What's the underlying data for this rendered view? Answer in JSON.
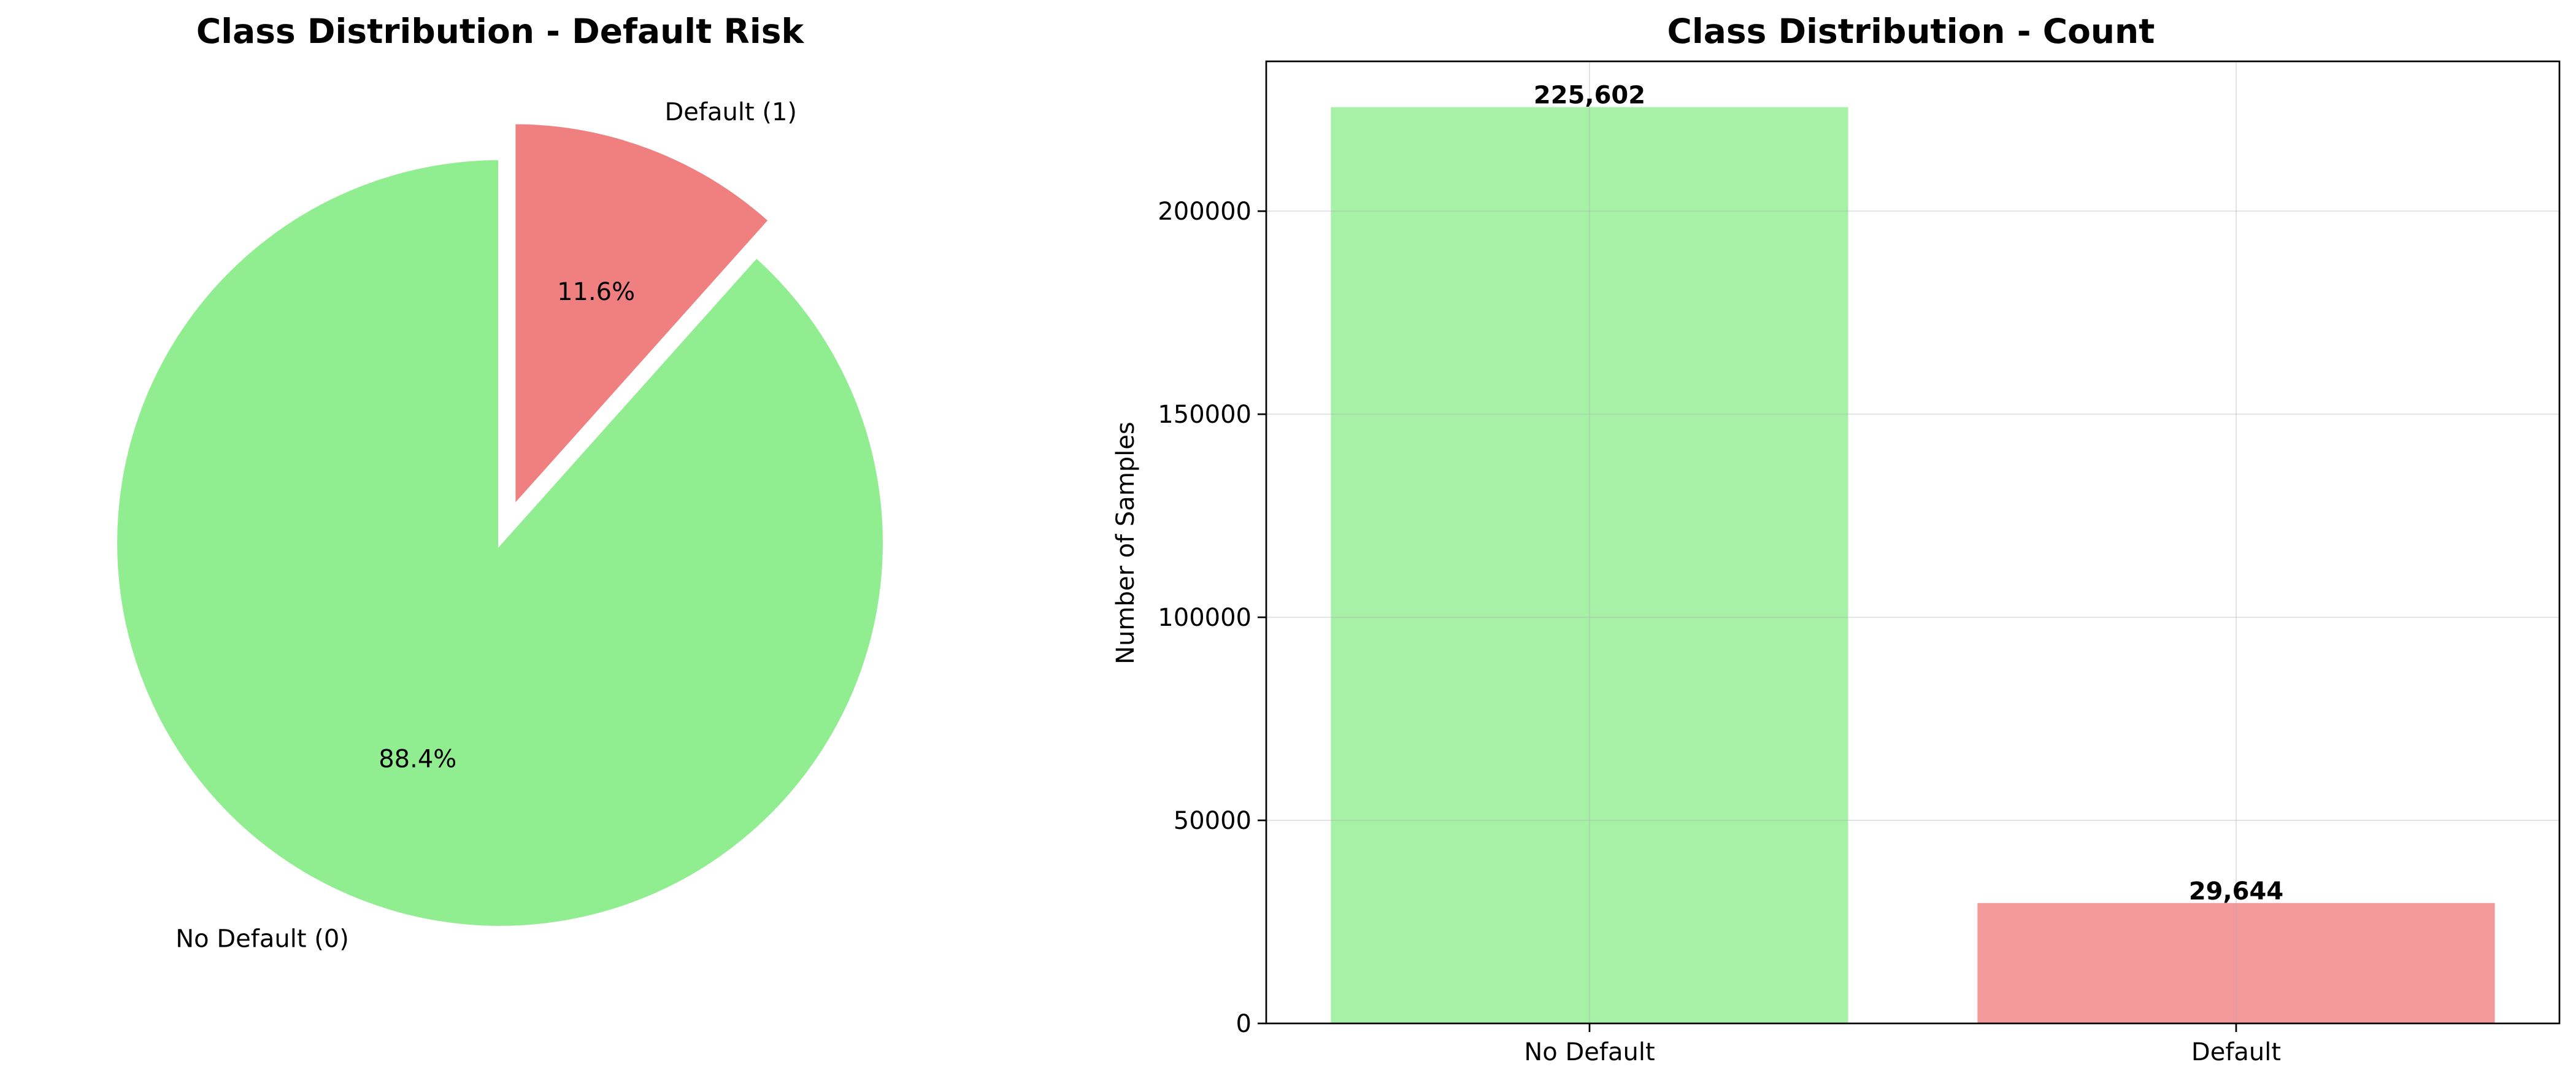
{
  "chart_data": [
    {
      "type": "pie",
      "title": "Class Distribution - Default Risk",
      "labels": [
        "No Default (0)",
        "Default (1)"
      ],
      "values": [
        225602,
        29644
      ],
      "percent_labels": [
        "88.4%",
        "11.6%"
      ],
      "colors": [
        "#90ee90",
        "#f08080"
      ],
      "explode": [
        0,
        0.1
      ],
      "start_angle_deg": 90
    },
    {
      "type": "bar",
      "title": "Class Distribution - Count",
      "categories": [
        "No Default",
        "Default"
      ],
      "values": [
        225602,
        29644
      ],
      "value_labels": [
        "225,602",
        "29,644"
      ],
      "colors": [
        "#90ee90",
        "#f08080"
      ],
      "xlabel": "",
      "ylabel": "Number of Samples",
      "ylim": [
        0,
        236882
      ],
      "yticks": [
        0,
        50000,
        100000,
        150000,
        200000
      ],
      "ytick_labels": [
        "0",
        "50000",
        "100000",
        "150000",
        "200000"
      ],
      "grid": true
    }
  ]
}
